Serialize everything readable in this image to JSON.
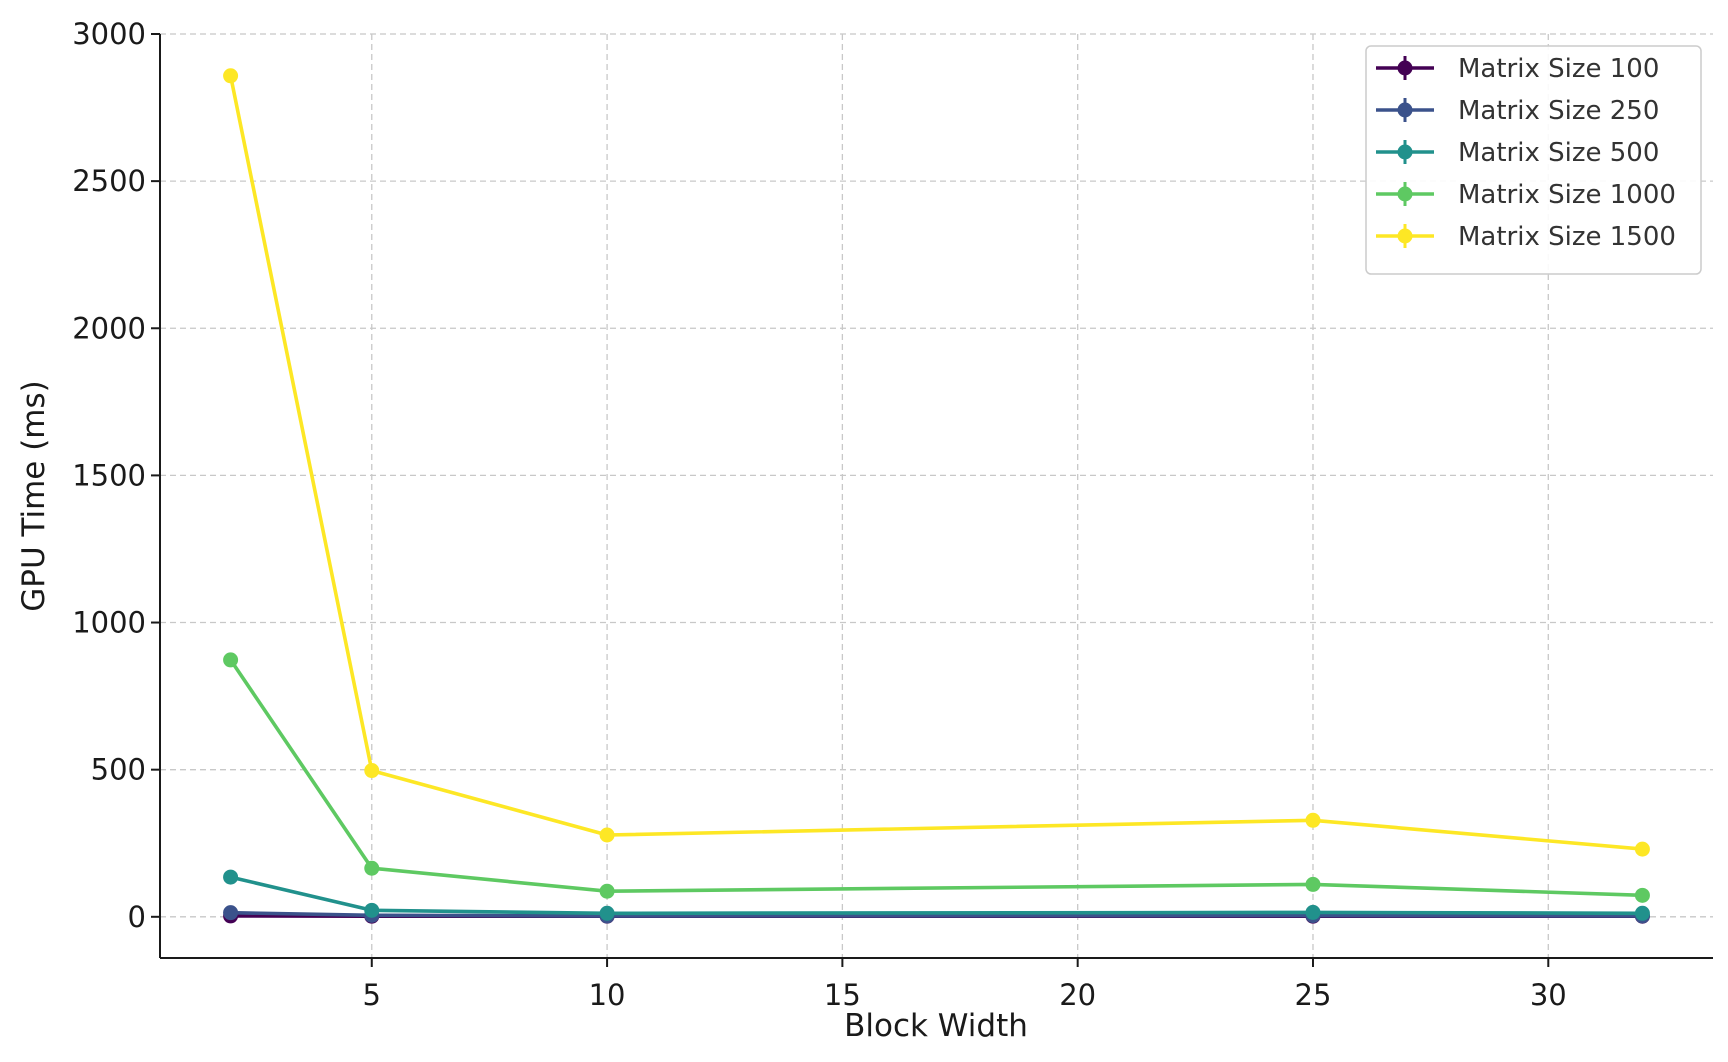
{
  "chart_data": {
    "type": "line",
    "title": "",
    "xlabel": "Block Width",
    "ylabel": "GPU Time (ms)",
    "x": [
      2,
      5,
      10,
      25,
      32
    ],
    "xlim": [
      0.5,
      33.5
    ],
    "ylim": [
      -140,
      3000
    ],
    "xticks": [
      5,
      10,
      15,
      20,
      25,
      30
    ],
    "yticks": [
      0,
      500,
      1000,
      1500,
      2000,
      2500,
      3000
    ],
    "grid": true,
    "legend_position": "top-right",
    "series": [
      {
        "name": "Matrix Size 100",
        "color": "#440154",
        "values": [
          3,
          2,
          2,
          2,
          2
        ]
      },
      {
        "name": "Matrix Size 250",
        "color": "#3b528b",
        "values": [
          14,
          5,
          3,
          4,
          3
        ]
      },
      {
        "name": "Matrix Size 500",
        "color": "#21918c",
        "values": [
          135,
          22,
          12,
          15,
          12
        ]
      },
      {
        "name": "Matrix Size 1000",
        "color": "#5ec962",
        "values": [
          873,
          165,
          87,
          110,
          73
        ]
      },
      {
        "name": "Matrix Size 1500",
        "color": "#fde725",
        "values": [
          2858,
          497,
          278,
          328,
          230
        ]
      }
    ]
  }
}
